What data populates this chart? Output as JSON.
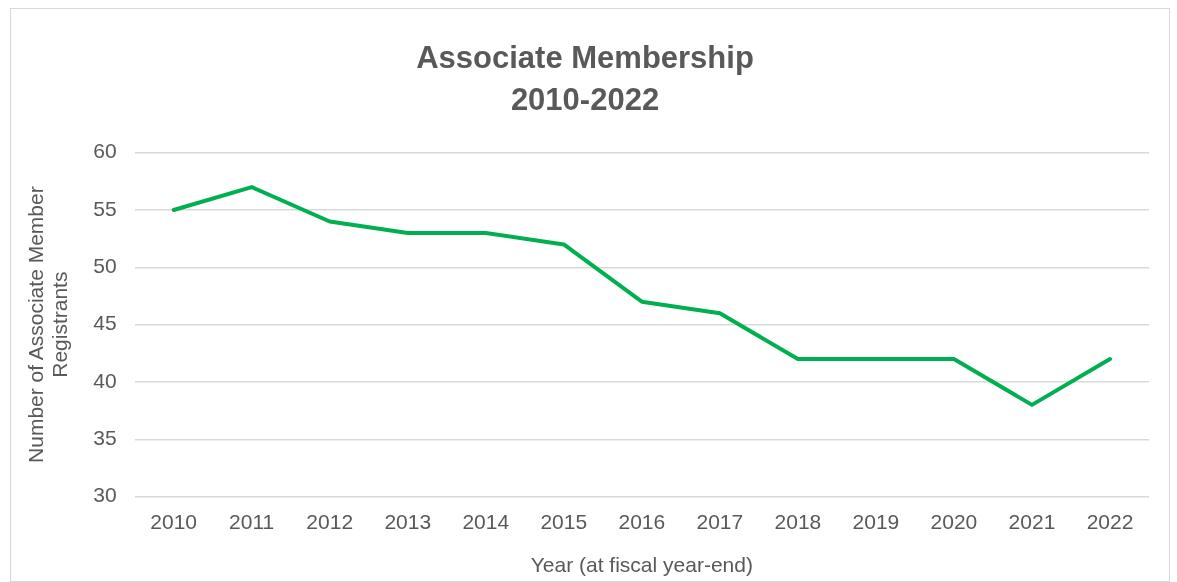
{
  "chart_data": {
    "type": "line",
    "title": "Associate Membership 2010-2022",
    "xlabel": "Year (at fiscal year-end)",
    "ylabel": "Number of Associate Member Registrants",
    "categories": [
      "2010",
      "2011",
      "2012",
      "2013",
      "2014",
      "2015",
      "2016",
      "2017",
      "2018",
      "2019",
      "2020",
      "2021",
      "2022"
    ],
    "series": [
      {
        "color": "#00b050",
        "values": [
          55,
          57,
          54,
          53,
          53,
          52,
          47,
          46,
          42,
          42,
          42,
          38,
          42
        ]
      }
    ],
    "ylim": [
      30,
      60
    ],
    "yticks": [
      30,
      35,
      40,
      45,
      50,
      55,
      60
    ],
    "grid": "y",
    "legend": false,
    "marker": "none",
    "line_style": "solid"
  }
}
